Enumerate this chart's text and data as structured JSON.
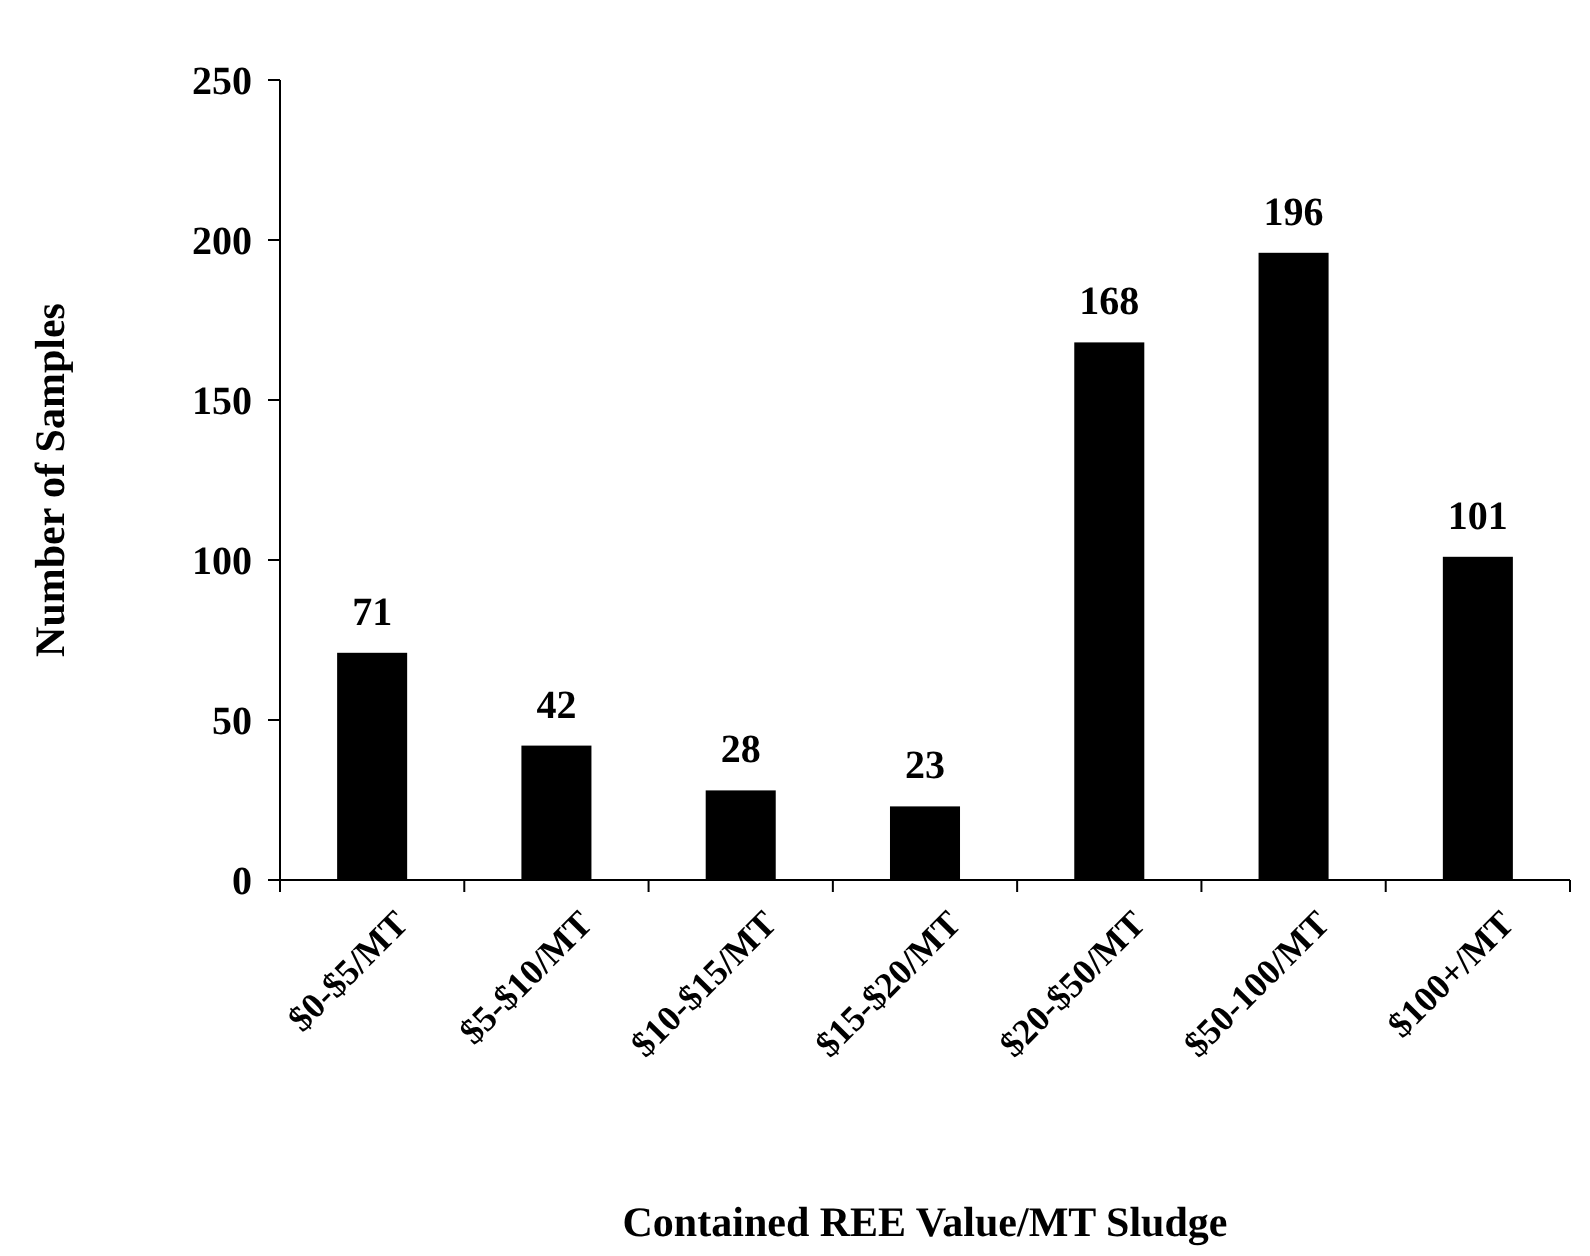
{
  "chart_data": {
    "type": "bar",
    "xlabel": "Contained REE Value/MT Sludge",
    "ylabel": "Number of Samples",
    "categories": [
      "$0-$5/MT",
      "$5-$10/MT",
      "$10-$15/MT",
      "$15-$20/MT",
      "$20-$50/MT",
      "$50-100/MT",
      "$100+/MT"
    ],
    "values": [
      71,
      42,
      28,
      23,
      168,
      196,
      101
    ],
    "color": "#000000",
    "ylim": [
      0,
      250
    ],
    "yticks": [
      0,
      50,
      100,
      150,
      200,
      250
    ],
    "data_labels": true
  }
}
